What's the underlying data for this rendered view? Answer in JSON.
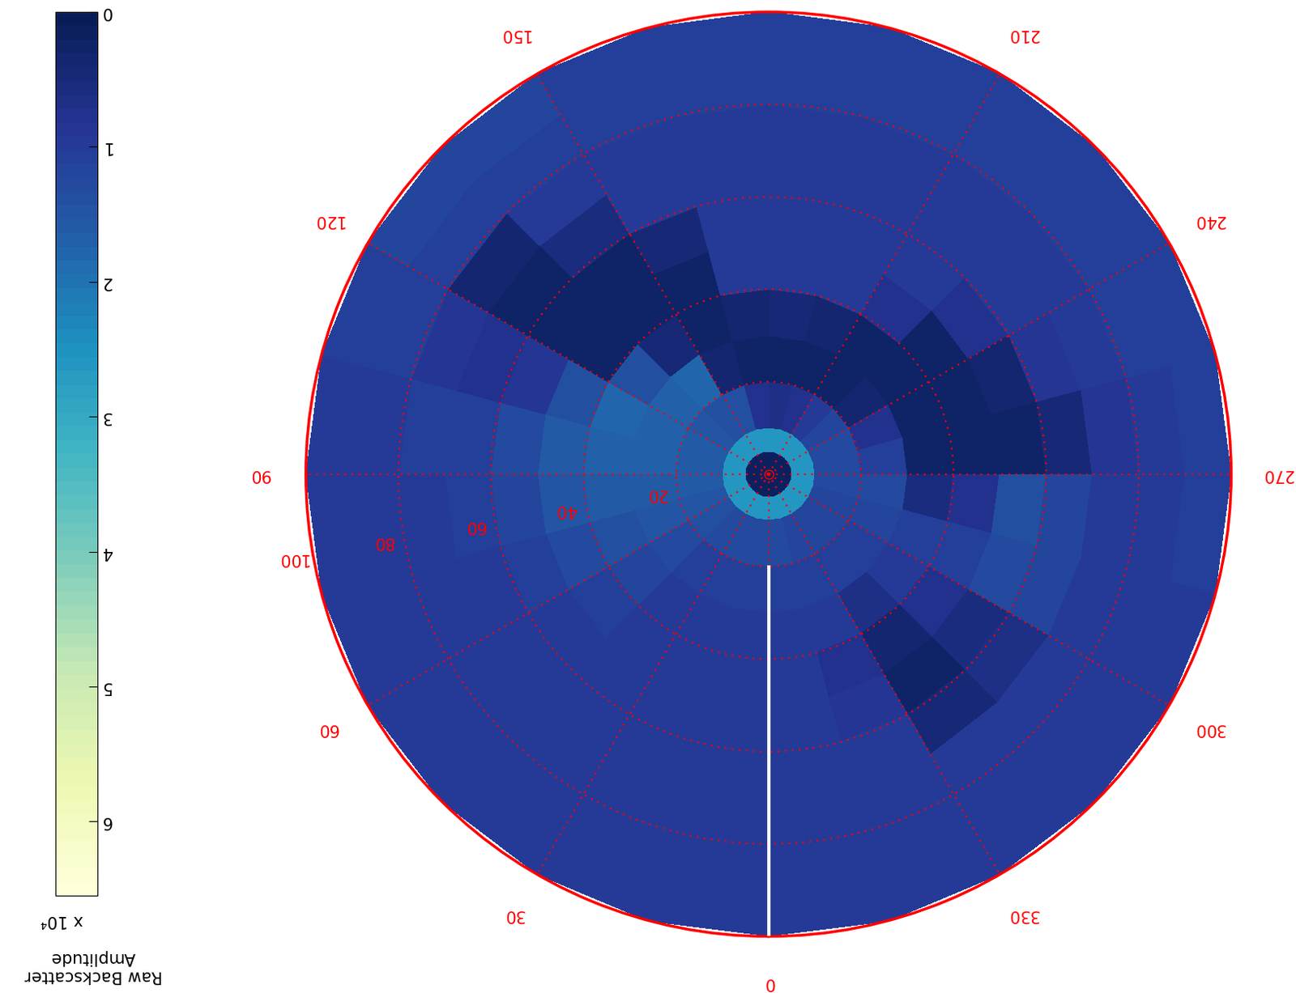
{
  "chart_data": {
    "type": "polar_heatmap",
    "theta_bins": [
      0,
      15,
      30,
      45,
      60,
      75,
      90,
      105,
      120,
      135,
      150,
      165,
      180,
      195,
      210,
      225,
      240,
      255,
      270,
      285,
      300,
      315,
      330,
      345,
      360
    ],
    "r_bins": [
      0,
      5,
      10,
      20,
      30,
      40,
      50,
      60,
      70,
      80,
      90,
      100
    ],
    "cells": [
      [
        0.2,
        2.6,
        1.3,
        1.1,
        1.0,
        1.0,
        1.0,
        1.0,
        1.0,
        1.0,
        1.0
      ],
      [
        0.2,
        2.6,
        1.3,
        1.1,
        1.0,
        1.0,
        1.0,
        1.0,
        1.0,
        1.0,
        1.0
      ],
      [
        0.2,
        2.6,
        1.3,
        1.1,
        1.0,
        1.0,
        1.0,
        1.0,
        1.0,
        1.0,
        1.0
      ],
      [
        0.2,
        2.6,
        1.4,
        1.3,
        1.2,
        1.1,
        1.0,
        1.0,
        1.0,
        1.0,
        1.0
      ],
      [
        0.2,
        2.6,
        1.5,
        1.5,
        1.4,
        1.3,
        1.1,
        1.0,
        1.0,
        1.0,
        1.0
      ],
      [
        0.2,
        2.6,
        1.6,
        1.6,
        1.6,
        1.5,
        1.2,
        1.1,
        1.0,
        1.0,
        1.0
      ],
      [
        0.2,
        2.6,
        1.6,
        1.7,
        1.7,
        1.6,
        1.3,
        1.1,
        1.1,
        1.0,
        1.0
      ],
      [
        0.2,
        2.6,
        1.6,
        1.7,
        1.8,
        1.4,
        0.9,
        0.8,
        0.9,
        1.1,
        1.1
      ],
      [
        0.2,
        2.6,
        1.5,
        1.7,
        1.4,
        0.3,
        0.25,
        0.25,
        0.4,
        1.1,
        1.2
      ],
      [
        0.2,
        2.6,
        1.4,
        1.8,
        0.5,
        0.25,
        0.25,
        0.6,
        1.0,
        1.1,
        1.2
      ],
      [
        0.2,
        2.6,
        1.4,
        0.4,
        0.25,
        0.25,
        0.5,
        1.0,
        1.0,
        1.1,
        1.1
      ],
      [
        0.2,
        2.6,
        0.8,
        0.25,
        0.4,
        1.0,
        1.0,
        1.0,
        1.0,
        1.1,
        1.1
      ],
      [
        0.2,
        2.6,
        0.7,
        0.25,
        0.5,
        1.0,
        1.0,
        1.0,
        1.0,
        1.1,
        1.1
      ],
      [
        0.2,
        2.6,
        0.8,
        0.25,
        0.4,
        1.0,
        1.0,
        1.0,
        1.0,
        1.1,
        1.1
      ],
      [
        0.2,
        2.6,
        1.0,
        0.3,
        0.3,
        0.8,
        1.0,
        1.0,
        1.0,
        1.1,
        1.1
      ],
      [
        0.2,
        2.6,
        1.2,
        0.4,
        0.25,
        0.3,
        0.8,
        1.0,
        1.0,
        1.1,
        1.1
      ],
      [
        0.2,
        2.6,
        1.3,
        0.8,
        0.3,
        0.25,
        0.4,
        0.9,
        1.0,
        1.1,
        1.1
      ],
      [
        0.2,
        2.6,
        1.3,
        1.1,
        0.3,
        0.25,
        0.3,
        0.5,
        0.9,
        1.0,
        1.1
      ],
      [
        0.2,
        2.6,
        1.3,
        1.3,
        0.6,
        0.8,
        1.4,
        1.2,
        1.0,
        1.0,
        1.1
      ],
      [
        0.2,
        2.6,
        1.2,
        1.2,
        1.1,
        1.1,
        1.3,
        1.2,
        1.0,
        1.0,
        1.0
      ],
      [
        0.2,
        2.6,
        1.2,
        1.1,
        1.0,
        0.8,
        0.6,
        0.7,
        1.0,
        1.0,
        1.0
      ],
      [
        0.2,
        2.6,
        1.2,
        1.1,
        0.7,
        0.35,
        0.3,
        0.5,
        1.0,
        1.0,
        1.0
      ],
      [
        0.2,
        2.6,
        1.2,
        1.1,
        1.0,
        0.8,
        0.9,
        1.0,
        1.0,
        1.0,
        1.0
      ],
      [
        0.2,
        2.6,
        1.3,
        1.1,
        1.0,
        1.0,
        1.0,
        1.0,
        1.0,
        1.0,
        1.0
      ]
    ],
    "xticks": [
      0,
      30,
      60,
      90,
      120,
      150,
      210,
      240,
      270,
      300,
      330
    ],
    "ylim": [
      0,
      100
    ],
    "yticks": [
      20,
      40,
      60,
      80,
      100
    ],
    "colorbar": {
      "label": "Raw Backscatter\nAmplitude",
      "multiplier": "x 10⁴",
      "range": [
        0,
        6.55
      ],
      "ticks": [
        0,
        1,
        2,
        3,
        4,
        5,
        6
      ]
    },
    "heading_line": {
      "theta": 0,
      "r": [
        20,
        100
      ]
    },
    "grid": true
  }
}
